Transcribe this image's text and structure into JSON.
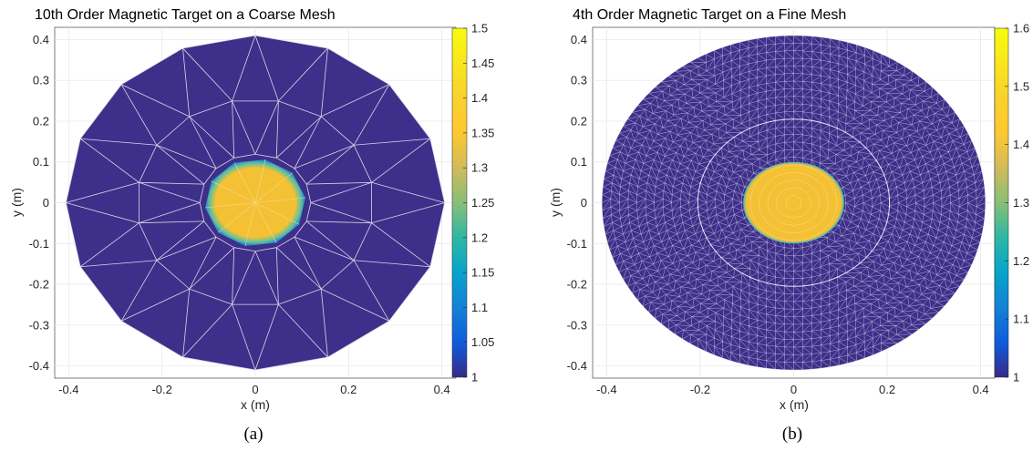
{
  "chart_data": [
    {
      "type": "heatmap",
      "title": "10th Order Magnetic Target on a Coarse Mesh",
      "xlabel": "x (m)",
      "ylabel": "y (m)",
      "xlim": [
        -0.43,
        0.43
      ],
      "ylim": [
        -0.43,
        0.43
      ],
      "xticks": [
        "-0.4",
        "-0.2",
        "0",
        "0.2",
        "0.4"
      ],
      "yticks": [
        "0.4",
        "0.3",
        "0.2",
        "0.1",
        "0",
        "-0.1",
        "-0.2",
        "-0.3",
        "-0.4"
      ],
      "colorbar": {
        "min": 1,
        "max": 1.5,
        "ticks": [
          "1.5",
          "1.45",
          "1.4",
          "1.35",
          "1.3",
          "1.25",
          "1.2",
          "1.15",
          "1.1",
          "1.05",
          "1"
        ]
      },
      "domain_radius": 0.41,
      "target_radius": 0.1,
      "outer_value": 1,
      "target_value": 1.45,
      "mesh": "coarse",
      "caption": "(a)"
    },
    {
      "type": "heatmap",
      "title": "4th Order Magnetic Target on a Fine Mesh",
      "xlabel": "x (m)",
      "ylabel": "y (m)",
      "xlim": [
        -0.43,
        0.43
      ],
      "ylim": [
        -0.43,
        0.43
      ],
      "xticks": [
        "-0.4",
        "-0.2",
        "0",
        "0.2",
        "0.4"
      ],
      "yticks": [
        "0.4",
        "0.3",
        "0.2",
        "0.1",
        "0",
        "-0.1",
        "-0.2",
        "-0.3",
        "-0.4"
      ],
      "colorbar": {
        "min": 1,
        "max": 1.6,
        "ticks": [
          "1.6",
          "1.5",
          "1.4",
          "1.3",
          "1.2",
          "1.1",
          "1"
        ]
      },
      "domain_radius": 0.41,
      "target_radius": 0.1,
      "outer_value": 1,
      "target_value": 1.53,
      "mesh": "fine",
      "caption": "(b)"
    }
  ],
  "colors": {
    "background_field": "#3e2f8a",
    "target": "#f4c135",
    "mesh_lines": "#d8d8e8",
    "grid": "#e6e6e6"
  }
}
